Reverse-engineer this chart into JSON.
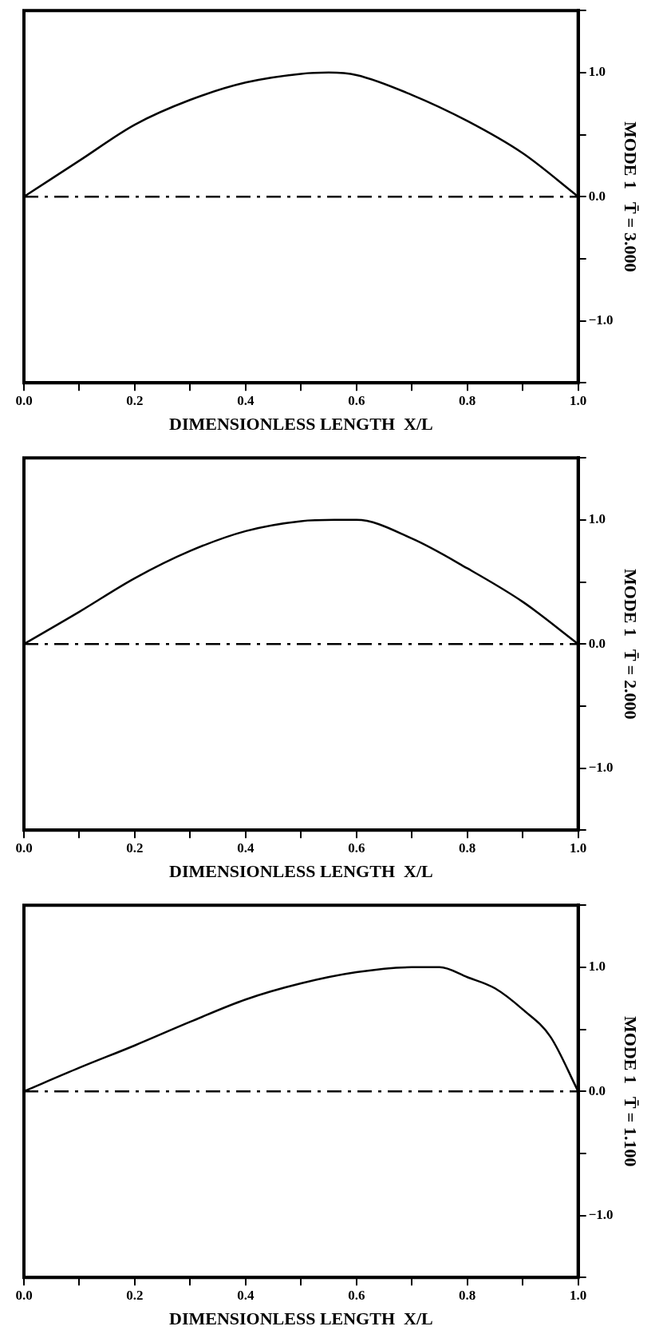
{
  "chart_data": [
    {
      "type": "line",
      "xlabel": "DIMENSIONLESS LENGTH  X/L",
      "ylabel": "MODE 1   T̄ = 3.000",
      "x": [
        0,
        0.1,
        0.2,
        0.3,
        0.4,
        0.5,
        0.55,
        0.6,
        0.7,
        0.8,
        0.9,
        1.0
      ],
      "series": [
        {
          "color": "#000000",
          "values": [
            0,
            0.29,
            0.58,
            0.78,
            0.92,
            0.99,
            1.0,
            0.98,
            0.82,
            0.61,
            0.35,
            0
          ]
        }
      ],
      "xlim": [
        0,
        1
      ],
      "ylim": [
        -1.5,
        1.5
      ],
      "xticks": [
        {
          "value": 0,
          "label": "0.0"
        },
        {
          "value": 0.1,
          "label": null
        },
        {
          "value": 0.2,
          "label": "0.2"
        },
        {
          "value": 0.3,
          "label": null
        },
        {
          "value": 0.4,
          "label": "0.4"
        },
        {
          "value": 0.5,
          "label": null
        },
        {
          "value": 0.6,
          "label": "0.6"
        },
        {
          "value": 0.7,
          "label": null
        },
        {
          "value": 0.8,
          "label": "0.8"
        },
        {
          "value": 0.9,
          "label": null
        },
        {
          "value": 1,
          "label": "1.0"
        }
      ],
      "yticks": [
        {
          "value": -1.5,
          "label": null
        },
        {
          "value": -1,
          "label": "−1.0"
        },
        {
          "value": -0.5,
          "label": null
        },
        {
          "value": 0,
          "label": "0.0"
        },
        {
          "value": 0.5,
          "label": null
        },
        {
          "value": 1,
          "label": "1.0"
        },
        {
          "value": 1.5,
          "label": null
        }
      ],
      "ref_lines": [
        {
          "axis": "y",
          "value": 0,
          "line_style": "dashed",
          "color": "#000000"
        }
      ],
      "grid": false,
      "legend": false,
      "marker": "none",
      "line_style": "solid"
    },
    {
      "type": "line",
      "xlabel": "DIMENSIONLESS LENGTH  X/L",
      "ylabel": "MODE 1   T̄ = 2.000",
      "x": [
        0,
        0.1,
        0.2,
        0.3,
        0.4,
        0.5,
        0.56,
        0.6,
        0.7,
        0.8,
        0.9,
        1.0
      ],
      "series": [
        {
          "color": "#000000",
          "values": [
            0,
            0.26,
            0.53,
            0.75,
            0.91,
            0.99,
            1.0,
            1.0,
            0.85,
            0.61,
            0.34,
            0
          ]
        }
      ],
      "xlim": [
        0,
        1
      ],
      "ylim": [
        -1.5,
        1.5
      ],
      "xticks": [
        {
          "value": 0,
          "label": "0.0"
        },
        {
          "value": 0.1,
          "label": null
        },
        {
          "value": 0.2,
          "label": "0.2"
        },
        {
          "value": 0.3,
          "label": null
        },
        {
          "value": 0.4,
          "label": "0.4"
        },
        {
          "value": 0.5,
          "label": null
        },
        {
          "value": 0.6,
          "label": "0.6"
        },
        {
          "value": 0.7,
          "label": null
        },
        {
          "value": 0.8,
          "label": "0.8"
        },
        {
          "value": 0.9,
          "label": null
        },
        {
          "value": 1,
          "label": "1.0"
        }
      ],
      "yticks": [
        {
          "value": -1.5,
          "label": null
        },
        {
          "value": -1,
          "label": "−1.0"
        },
        {
          "value": -0.5,
          "label": null
        },
        {
          "value": 0,
          "label": "0.0"
        },
        {
          "value": 0.5,
          "label": null
        },
        {
          "value": 1,
          "label": "1.0"
        },
        {
          "value": 1.5,
          "label": null
        }
      ],
      "ref_lines": [
        {
          "axis": "y",
          "value": 0,
          "line_style": "dashed",
          "color": "#000000"
        }
      ],
      "grid": false,
      "legend": false,
      "marker": "none",
      "line_style": "solid"
    },
    {
      "type": "line",
      "xlabel": "DIMENSIONLESS LENGTH  X/L",
      "ylabel": "MODE 1   T̄ = 1.100",
      "x": [
        0,
        0.1,
        0.2,
        0.3,
        0.4,
        0.5,
        0.6,
        0.7,
        0.75,
        0.8,
        0.85,
        0.9,
        0.95,
        1.0
      ],
      "series": [
        {
          "color": "#000000",
          "values": [
            0,
            0.19,
            0.37,
            0.56,
            0.74,
            0.87,
            0.96,
            1.0,
            1.0,
            0.92,
            0.83,
            0.66,
            0.44,
            0
          ]
        }
      ],
      "xlim": [
        0,
        1
      ],
      "ylim": [
        -1.5,
        1.5
      ],
      "xticks": [
        {
          "value": 0,
          "label": "0.0"
        },
        {
          "value": 0.1,
          "label": null
        },
        {
          "value": 0.2,
          "label": "0.2"
        },
        {
          "value": 0.3,
          "label": null
        },
        {
          "value": 0.4,
          "label": "0.4"
        },
        {
          "value": 0.5,
          "label": null
        },
        {
          "value": 0.6,
          "label": "0.6"
        },
        {
          "value": 0.7,
          "label": null
        },
        {
          "value": 0.8,
          "label": "0.8"
        },
        {
          "value": 0.9,
          "label": null
        },
        {
          "value": 1,
          "label": "1.0"
        }
      ],
      "yticks": [
        {
          "value": -1.5,
          "label": null
        },
        {
          "value": -1,
          "label": "−1.0"
        },
        {
          "value": -0.5,
          "label": null
        },
        {
          "value": 0,
          "label": "0.0"
        },
        {
          "value": 0.5,
          "label": null
        },
        {
          "value": 1,
          "label": "1.0"
        },
        {
          "value": 1.5,
          "label": null
        }
      ],
      "ref_lines": [
        {
          "axis": "y",
          "value": 0,
          "line_style": "dashed",
          "color": "#000000"
        }
      ],
      "grid": false,
      "legend": false,
      "marker": "none",
      "line_style": "solid"
    }
  ]
}
